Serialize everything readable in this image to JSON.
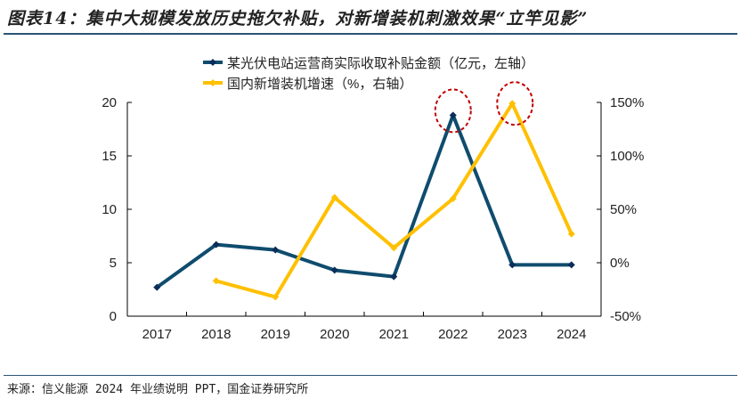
{
  "title": "图表14：集中大规模发放历史拖欠补贴，对新增装机刺激效果“立竿见影”",
  "source": "来源：信义能源 2024 年业绩说明 PPT，国金证券研究所",
  "chart_data": {
    "type": "line",
    "categories": [
      "2017",
      "2018",
      "2019",
      "2020",
      "2021",
      "2022",
      "2023",
      "2024"
    ],
    "series": [
      {
        "name": "某光伏电站运营商实际收取补贴金额（亿元，左轴）",
        "axis": "left",
        "color": "#0f4c6e",
        "marker": "diamond",
        "values": [
          2.7,
          6.7,
          6.2,
          4.3,
          3.7,
          18.8,
          4.8,
          4.8
        ]
      },
      {
        "name": "国内新增装机增速（%，右轴）",
        "axis": "right",
        "color": "#ffc000",
        "marker": "diamond",
        "values": [
          null,
          -17,
          -32,
          61,
          14,
          60,
          149,
          27
        ]
      }
    ],
    "left_axis": {
      "ylim": [
        0,
        20
      ],
      "ticks": [
        "0",
        "5",
        "10",
        "15",
        "20"
      ]
    },
    "right_axis": {
      "ylim": [
        -50,
        150
      ],
      "ticks": [
        "-50%",
        "0%",
        "50%",
        "100%",
        "150%"
      ]
    },
    "highlights": [
      {
        "series": 0,
        "category": "2022",
        "color": "#c00000"
      },
      {
        "series": 1,
        "category": "2023",
        "color": "#c00000"
      }
    ],
    "grid": false,
    "legend": "top"
  }
}
